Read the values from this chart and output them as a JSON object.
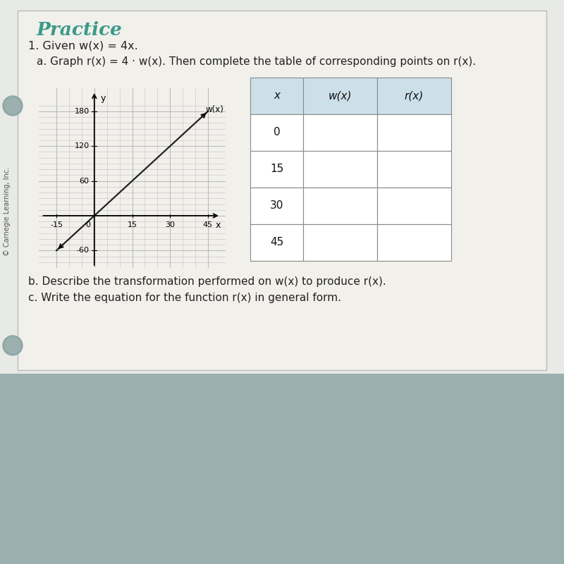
{
  "bg_page": "#eeeeea",
  "bg_desk": "#a8baba",
  "title": "Practice",
  "title_color": "#3a9a8a",
  "problem_text": "1. Given w(x) = 4x.",
  "subproblem_text": "a. Graph r(x) = 4 · w(x). Then complete the table of corresponding points on r(x).",
  "part_b": "b. Describe the transformation performed on w(x) to produce r(x).",
  "part_c": "c. Write the equation for the function r(x) in general form.",
  "copyright": "© Carnegie Learning, Inc.",
  "graph": {
    "xlim": [
      -22,
      52
    ],
    "ylim": [
      -90,
      220
    ],
    "xticks": [
      -15,
      0,
      15,
      30,
      45
    ],
    "yticks": [
      -60,
      0,
      60,
      120,
      180
    ],
    "line_x": [
      -15,
      45
    ],
    "line_y": [
      -60,
      180
    ],
    "grid_color": "#cccccc",
    "line_color": "#222222"
  },
  "table": {
    "headers": [
      "x",
      "w(x)",
      "r(x)"
    ],
    "rows": [
      "0",
      "15",
      "30",
      "45"
    ],
    "header_bg": "#cde0ea",
    "cell_bg": "#ffffff",
    "border_color": "#999999"
  }
}
